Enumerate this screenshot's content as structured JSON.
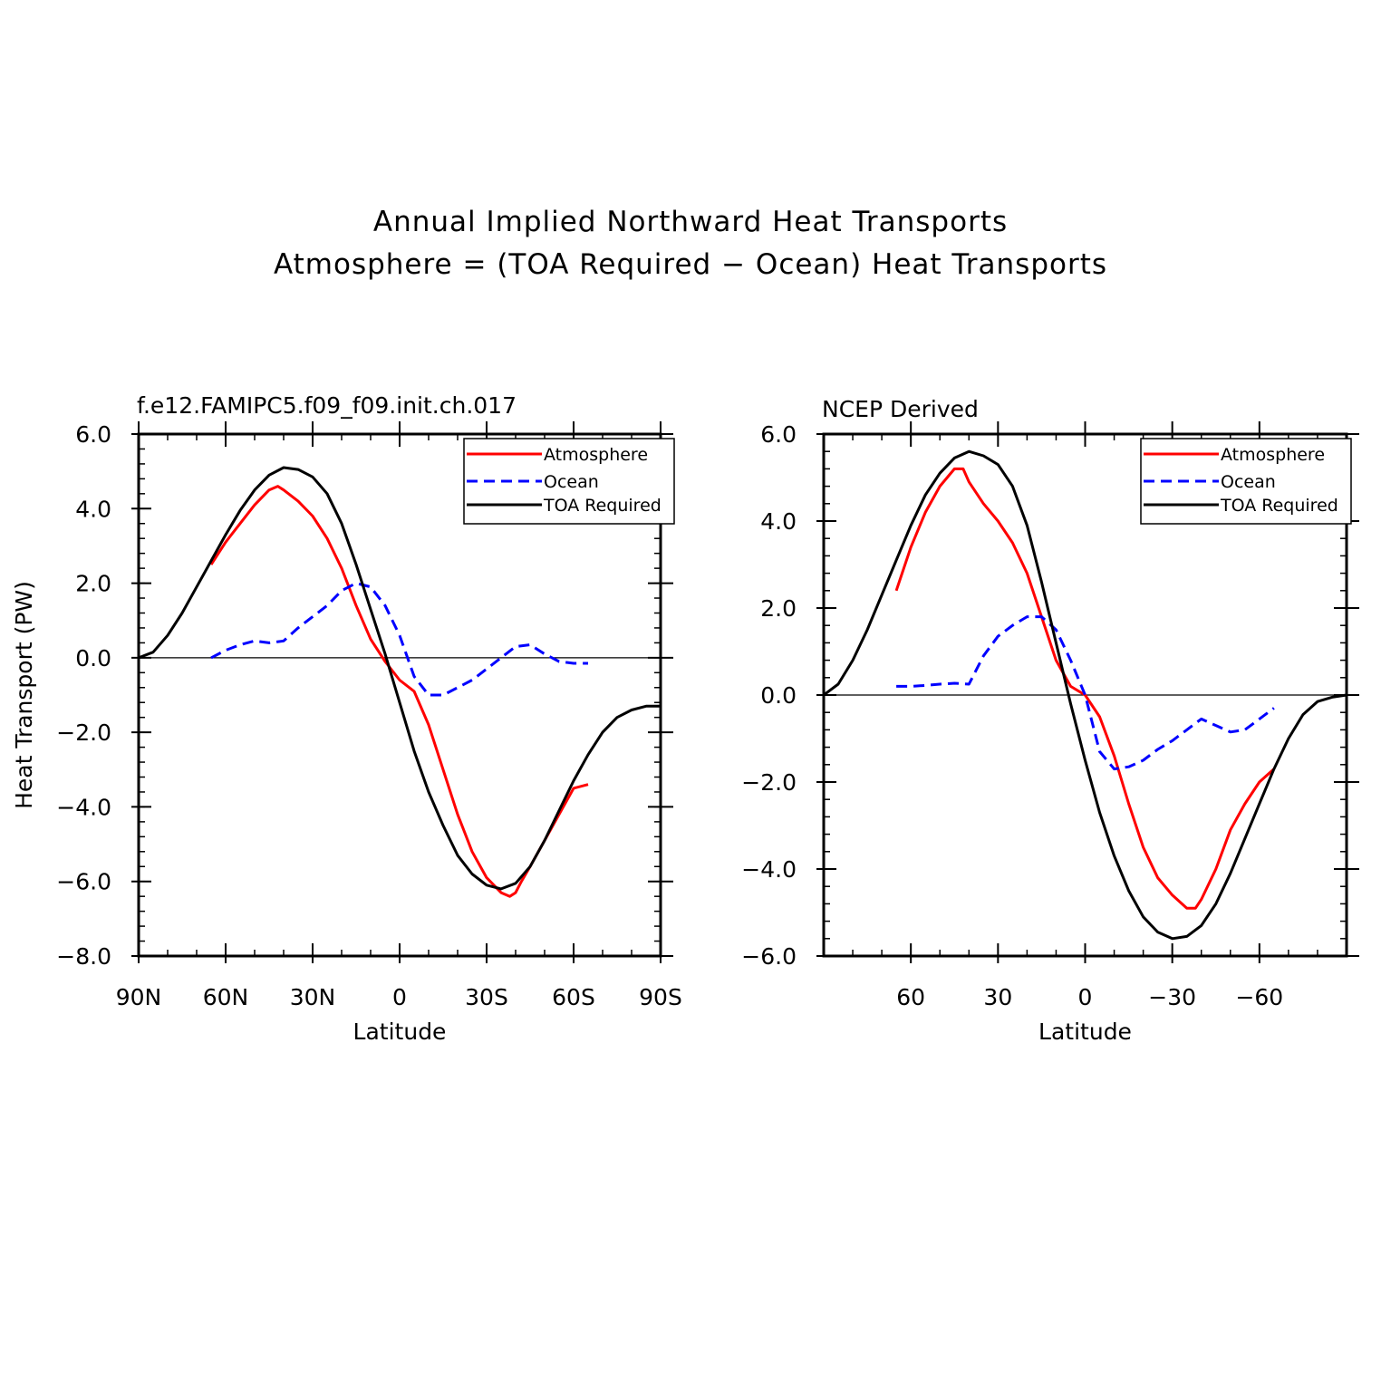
{
  "figure": {
    "title_line1": "Annual Implied Northward Heat Transports",
    "title_line2": "Atmosphere = (TOA Required − Ocean) Heat Transports"
  },
  "colors": {
    "atmosphere": "#ff0000",
    "ocean": "#0000ff",
    "toa": "#000000"
  },
  "chart_data": [
    {
      "type": "line",
      "title": "f.e12.FAMIPC5.f09_f09.init.ch.017",
      "xlabel": "Latitude",
      "ylabel": "Heat Transport (PW)",
      "xlim": [
        90,
        -90
      ],
      "ylim": [
        -8,
        6
      ],
      "xticks": [
        90,
        60,
        30,
        0,
        -30,
        -60,
        -90
      ],
      "xtick_labels": [
        "90N",
        "60N",
        "30N",
        "0",
        "30S",
        "60S",
        "90S"
      ],
      "yticks": [
        -8,
        -6,
        -4,
        -2,
        0,
        2,
        4,
        6
      ],
      "ytick_labels": [
        "−8.0",
        "−6.0",
        "−4.0",
        "−2.0",
        "0.0",
        "2.0",
        "4.0",
        "6.0"
      ],
      "grid": false,
      "zero_line": true,
      "legend_position": "top-right",
      "series": [
        {
          "name": "Atmosphere",
          "color": "#ff0000",
          "dash": "solid",
          "x": [
            65,
            60,
            55,
            50,
            45,
            42,
            40,
            35,
            30,
            25,
            20,
            15,
            10,
            5,
            0,
            -5,
            -10,
            -15,
            -20,
            -25,
            -30,
            -35,
            -38,
            -40,
            -42,
            -45,
            -50,
            -55,
            -60,
            -65
          ],
          "y": [
            2.5,
            3.1,
            3.6,
            4.1,
            4.5,
            4.6,
            4.5,
            4.2,
            3.8,
            3.2,
            2.4,
            1.4,
            0.5,
            -0.1,
            -0.6,
            -0.9,
            -1.8,
            -3.0,
            -4.2,
            -5.2,
            -5.9,
            -6.3,
            -6.4,
            -6.3,
            -6.0,
            -5.6,
            -4.9,
            -4.2,
            -3.5,
            -3.4
          ]
        },
        {
          "name": "Ocean",
          "color": "#0000ff",
          "dash": "dashed",
          "x": [
            65,
            60,
            55,
            50,
            45,
            40,
            35,
            30,
            25,
            20,
            15,
            10,
            5,
            0,
            -5,
            -10,
            -15,
            -20,
            -25,
            -30,
            -35,
            -40,
            -45,
            -50,
            -55,
            -60,
            -65
          ],
          "y": [
            0.0,
            0.2,
            0.35,
            0.45,
            0.4,
            0.45,
            0.8,
            1.1,
            1.4,
            1.8,
            2.0,
            1.9,
            1.4,
            0.6,
            -0.5,
            -1.0,
            -1.0,
            -0.8,
            -0.6,
            -0.3,
            0.0,
            0.3,
            0.35,
            0.1,
            -0.1,
            -0.15,
            -0.15
          ]
        },
        {
          "name": "TOA Required",
          "color": "#000000",
          "dash": "solid",
          "x": [
            90,
            85,
            80,
            75,
            70,
            65,
            60,
            55,
            50,
            45,
            40,
            35,
            30,
            25,
            20,
            15,
            10,
            5,
            0,
            -5,
            -10,
            -15,
            -20,
            -25,
            -30,
            -35,
            -40,
            -45,
            -50,
            -55,
            -60,
            -65,
            -70,
            -75,
            -80,
            -85,
            -90
          ],
          "y": [
            0.0,
            0.15,
            0.6,
            1.2,
            1.9,
            2.6,
            3.3,
            3.95,
            4.5,
            4.9,
            5.1,
            5.05,
            4.85,
            4.4,
            3.6,
            2.5,
            1.3,
            0.1,
            -1.2,
            -2.5,
            -3.6,
            -4.5,
            -5.3,
            -5.8,
            -6.1,
            -6.2,
            -6.05,
            -5.6,
            -4.9,
            -4.1,
            -3.3,
            -2.6,
            -2.0,
            -1.6,
            -1.4,
            -1.3,
            -1.3
          ]
        }
      ]
    },
    {
      "type": "line",
      "title": "NCEP Derived",
      "xlabel": "Latitude",
      "ylabel": "",
      "xlim": [
        90,
        -90
      ],
      "ylim": [
        -6,
        6
      ],
      "xticks": [
        60,
        30,
        0,
        -30,
        -60
      ],
      "xtick_labels": [
        "60",
        "30",
        "0",
        "−30",
        "−60"
      ],
      "yticks": [
        -6,
        -4,
        -2,
        0,
        2,
        4,
        6
      ],
      "ytick_labels": [
        "−6.0",
        "−4.0",
        "−2.0",
        "0.0",
        "2.0",
        "4.0",
        "6.0"
      ],
      "grid": false,
      "zero_line": true,
      "legend_position": "top-right",
      "series": [
        {
          "name": "Atmosphere",
          "color": "#ff0000",
          "dash": "solid",
          "x": [
            65,
            60,
            55,
            50,
            45,
            42,
            40,
            35,
            30,
            25,
            20,
            15,
            10,
            5,
            0,
            -5,
            -10,
            -15,
            -20,
            -25,
            -30,
            -35,
            -38,
            -40,
            -45,
            -50,
            -55,
            -60,
            -65
          ],
          "y": [
            2.4,
            3.4,
            4.2,
            4.8,
            5.2,
            5.2,
            4.9,
            4.4,
            4.0,
            3.5,
            2.8,
            1.8,
            0.8,
            0.2,
            0.0,
            -0.5,
            -1.4,
            -2.5,
            -3.5,
            -4.2,
            -4.6,
            -4.9,
            -4.9,
            -4.7,
            -4.0,
            -3.1,
            -2.5,
            -2.0,
            -1.7
          ]
        },
        {
          "name": "Ocean",
          "color": "#0000ff",
          "dash": "dashed",
          "x": [
            65,
            60,
            55,
            50,
            45,
            40,
            35,
            30,
            25,
            20,
            15,
            10,
            5,
            0,
            -5,
            -10,
            -15,
            -20,
            -25,
            -30,
            -35,
            -40,
            -45,
            -50,
            -55,
            -60,
            -65
          ],
          "y": [
            0.2,
            0.2,
            0.22,
            0.25,
            0.27,
            0.25,
            0.9,
            1.35,
            1.6,
            1.8,
            1.8,
            1.5,
            0.8,
            0.0,
            -1.3,
            -1.7,
            -1.65,
            -1.5,
            -1.25,
            -1.05,
            -0.8,
            -0.55,
            -0.7,
            -0.85,
            -0.8,
            -0.55,
            -0.3
          ]
        },
        {
          "name": "TOA Required",
          "color": "#000000",
          "dash": "solid",
          "x": [
            90,
            85,
            80,
            75,
            70,
            65,
            60,
            55,
            50,
            45,
            40,
            35,
            30,
            25,
            20,
            15,
            10,
            5,
            0,
            -5,
            -10,
            -15,
            -20,
            -25,
            -30,
            -35,
            -40,
            -45,
            -50,
            -55,
            -60,
            -65,
            -70,
            -75,
            -80,
            -85,
            -90
          ],
          "y": [
            0.0,
            0.25,
            0.8,
            1.5,
            2.3,
            3.1,
            3.9,
            4.6,
            5.1,
            5.45,
            5.6,
            5.5,
            5.3,
            4.8,
            3.9,
            2.6,
            1.2,
            -0.2,
            -1.5,
            -2.7,
            -3.7,
            -4.5,
            -5.1,
            -5.45,
            -5.6,
            -5.55,
            -5.3,
            -4.8,
            -4.1,
            -3.3,
            -2.5,
            -1.7,
            -1.0,
            -0.45,
            -0.15,
            -0.05,
            0.0
          ]
        }
      ]
    }
  ]
}
